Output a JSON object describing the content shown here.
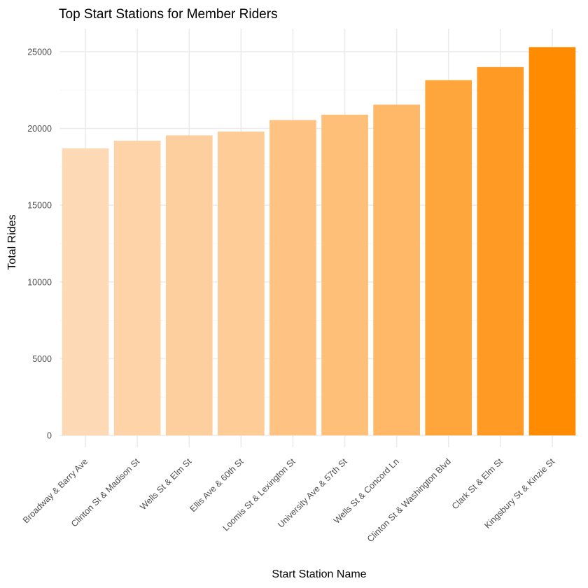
{
  "chart_data": {
    "type": "bar",
    "title": "Top Start Stations for Member Riders",
    "xlabel": "Start Station Name",
    "ylabel": "Total Rides",
    "categories": [
      "Broadway & Barry Ave",
      "Clinton St & Madison St",
      "Wells St & Elm St",
      "Ellis Ave & 60th St",
      "Loomis St & Lexington St",
      "University Ave & 57th St",
      "Wells St & Concord Ln",
      "Clinton St & Washington Blvd",
      "Clark St & Elm St",
      "Kingsbury St & Kinzie St"
    ],
    "values": [
      18700,
      19200,
      19550,
      19800,
      20550,
      20900,
      21550,
      23150,
      24000,
      25300
    ],
    "ylim": [
      0,
      26500
    ],
    "yticks": [
      0,
      5000,
      10000,
      15000,
      20000,
      25000
    ],
    "grid": true,
    "legend": "none",
    "color_low": "#fdd9b5",
    "color_high": "#ff8c00"
  }
}
